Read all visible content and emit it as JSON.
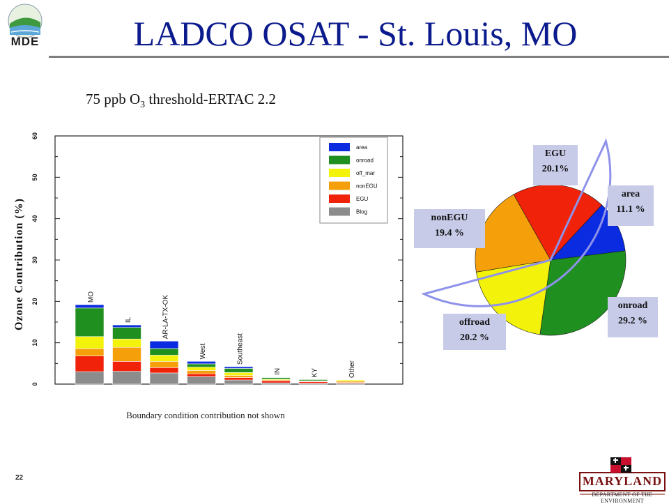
{
  "slide": {
    "title": "LADCO OSAT - St. Louis, MO",
    "logo_text": "MDE",
    "subtitle_prefix": "75 ppb O",
    "subtitle_sub": "3",
    "subtitle_suffix": " threshold-ERTAC 2.2",
    "footnote": "Boundary condition contribution not shown",
    "page_number": "22",
    "brand_word": "MARYLAND",
    "brand_dept": "DEPARTMENT OF THE ENVIRONMENT"
  },
  "colors": {
    "area": "#0a2be0",
    "onroad": "#1f8f1f",
    "off_mar": "#f2f20a",
    "nonEGU": "#f5a00a",
    "EGU": "#f0220a",
    "Blog": "#8c8c8c",
    "title": "#0b1a8c",
    "accent_circle": "#8e92ea"
  },
  "chart_data": [
    {
      "type": "bar",
      "stacked": true,
      "ylabel": "Ozone Contribution (%)",
      "ylim": [
        0,
        60
      ],
      "yticks": [
        "0",
        "10",
        "20",
        "30",
        "40",
        "50",
        "60"
      ],
      "categories": [
        "MO",
        "IL",
        "AR-LA-TX-OK",
        "West",
        "Southeast",
        "IN",
        "KY",
        "Other"
      ],
      "series": [
        {
          "name": "Blog",
          "values": [
            3.0,
            3.1,
            2.7,
            1.8,
            1.0,
            0.3,
            0.2,
            0.2
          ]
        },
        {
          "name": "EGU",
          "values": [
            3.8,
            2.4,
            1.3,
            0.7,
            0.6,
            0.5,
            0.4,
            0.2
          ]
        },
        {
          "name": "nonEGU",
          "values": [
            1.8,
            3.4,
            1.5,
            0.8,
            0.5,
            0.2,
            0.1,
            0.3
          ]
        },
        {
          "name": "off_mar",
          "values": [
            2.9,
            2.0,
            1.5,
            0.8,
            0.7,
            0.2,
            0.1,
            0.3
          ]
        },
        {
          "name": "onroad",
          "values": [
            6.9,
            2.8,
            1.6,
            0.8,
            1.0,
            0.4,
            0.3,
            0.0
          ]
        },
        {
          "name": "area",
          "values": [
            0.8,
            0.6,
            1.8,
            0.6,
            0.4,
            0.1,
            0.0,
            0.0
          ]
        }
      ],
      "legend": [
        "area",
        "onroad",
        "off_mar",
        "nonEGU",
        "EGU",
        "Blog"
      ],
      "legend_position": "top-right",
      "grid": false
    },
    {
      "type": "pie",
      "slices": [
        {
          "name": "area",
          "line1": "area",
          "line2": "11.1 %",
          "value": 11.1
        },
        {
          "name": "onroad",
          "line1": "onroad",
          "line2": "29.2 %",
          "value": 29.2
        },
        {
          "name": "offroad",
          "line1": "offroad",
          "line2": "20.2 %",
          "value": 20.2
        },
        {
          "name": "nonEGU",
          "line1": "nonEGU",
          "line2": "19.4 %",
          "value": 19.4
        },
        {
          "name": "EGU",
          "line1": "EGU",
          "line2": "20.1%",
          "value": 20.1
        }
      ]
    }
  ]
}
